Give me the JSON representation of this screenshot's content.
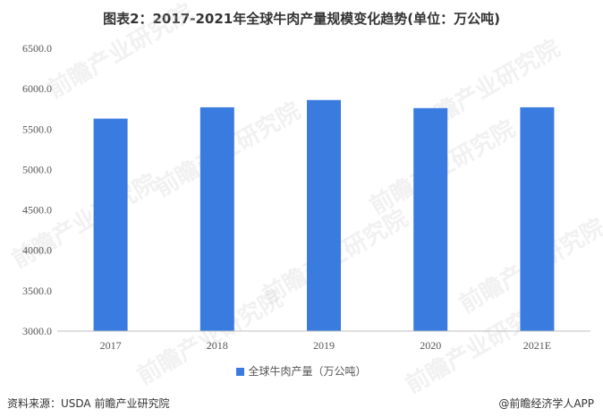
{
  "title": "图表2：2017-2021年全球牛肉产量规模变化趋势(单位：万公吨)",
  "legend_label": "全球牛肉产量（万公吨）",
  "footer": {
    "source": "资料来源：USDA 前瞻产业研究院",
    "app": "@前瞻经济学人APP"
  },
  "colors": {
    "bar": "#3a7be0",
    "axis": "#bfbfbf"
  },
  "chart_data": {
    "type": "bar",
    "categories": [
      "2017",
      "2018",
      "2019",
      "2020",
      "2021E"
    ],
    "series": [
      {
        "name": "全球牛肉产量（万公吨）",
        "values": [
          5630,
          5770,
          5860,
          5760,
          5770
        ]
      }
    ],
    "ylim": [
      3000,
      6500
    ],
    "yticks": [
      "3000.0",
      "3500.0",
      "4000.0",
      "4500.0",
      "5000.0",
      "5500.0",
      "6000.0",
      "6500.0"
    ],
    "grid": false,
    "legend": "bottom"
  }
}
